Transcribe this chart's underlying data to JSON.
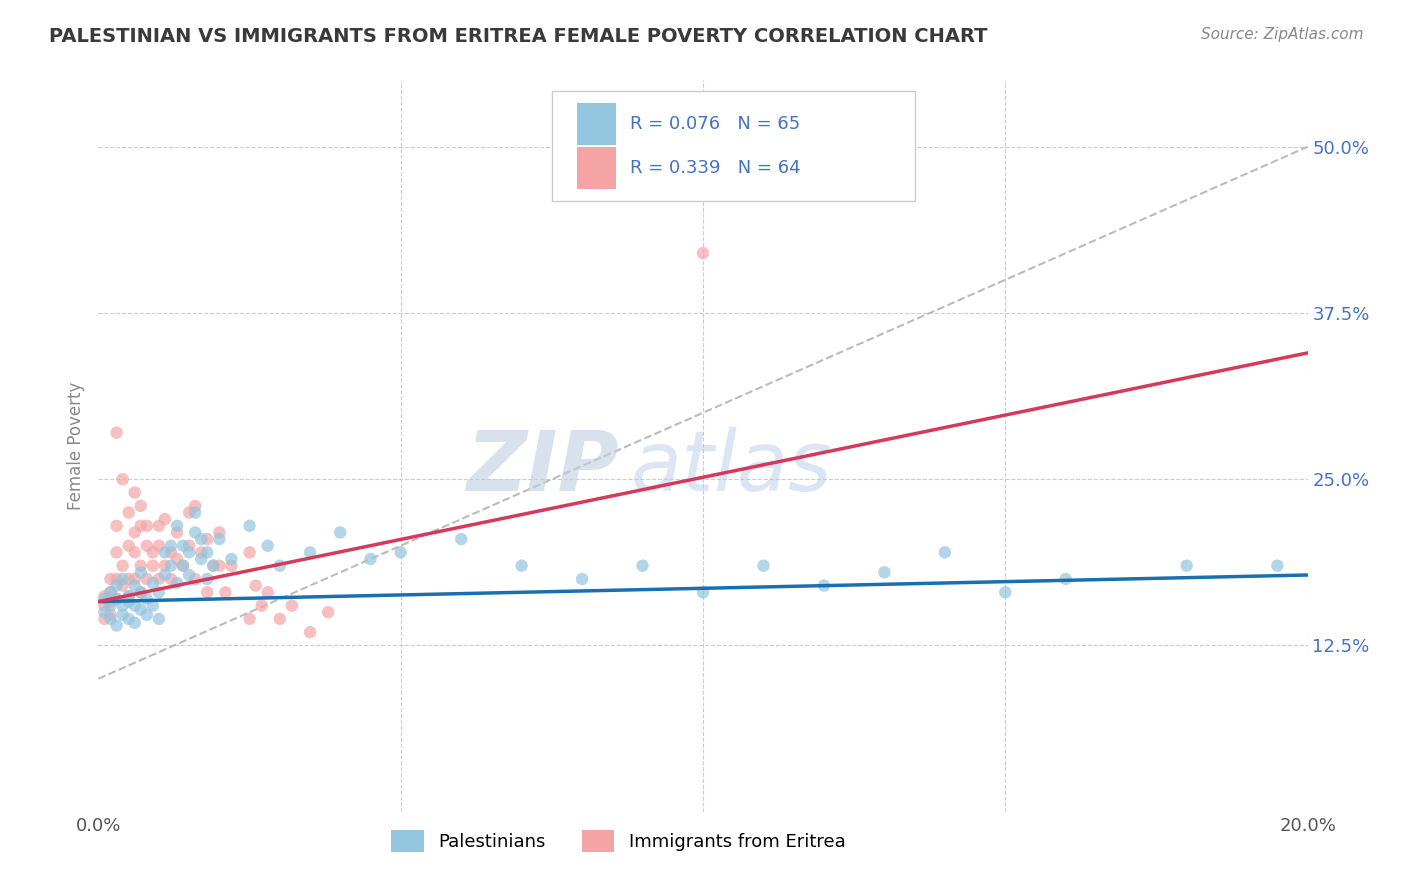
{
  "title": "PALESTINIAN VS IMMIGRANTS FROM ERITREA FEMALE POVERTY CORRELATION CHART",
  "source": "Source: ZipAtlas.com",
  "ylabel": "Female Poverty",
  "xlim": [
    0.0,
    0.2
  ],
  "ylim": [
    0.0,
    0.55
  ],
  "yticks": [
    0.0,
    0.125,
    0.25,
    0.375,
    0.5
  ],
  "ytick_labels": [
    "",
    "12.5%",
    "25.0%",
    "37.5%",
    "50.0%"
  ],
  "blue_color": "#92c5de",
  "pink_color": "#f4a4a4",
  "blue_line_color": "#1a6faf",
  "pink_line_color": "#d63a5a",
  "grid_color": "#cccccc",
  "title_color": "#3a3a3a",
  "legend_text_color": "#4472c4",
  "scatter_blue": [
    [
      0.001,
      0.16
    ],
    [
      0.001,
      0.15
    ],
    [
      0.002,
      0.165
    ],
    [
      0.002,
      0.145
    ],
    [
      0.002,
      0.155
    ],
    [
      0.003,
      0.17
    ],
    [
      0.003,
      0.14
    ],
    [
      0.003,
      0.16
    ],
    [
      0.004,
      0.155
    ],
    [
      0.004,
      0.175
    ],
    [
      0.004,
      0.148
    ],
    [
      0.005,
      0.162
    ],
    [
      0.005,
      0.145
    ],
    [
      0.005,
      0.158
    ],
    [
      0.006,
      0.155
    ],
    [
      0.006,
      0.17
    ],
    [
      0.006,
      0.142
    ],
    [
      0.007,
      0.165
    ],
    [
      0.007,
      0.152
    ],
    [
      0.007,
      0.18
    ],
    [
      0.008,
      0.16
    ],
    [
      0.008,
      0.148
    ],
    [
      0.009,
      0.172
    ],
    [
      0.009,
      0.155
    ],
    [
      0.01,
      0.165
    ],
    [
      0.01,
      0.145
    ],
    [
      0.011,
      0.195
    ],
    [
      0.011,
      0.178
    ],
    [
      0.012,
      0.2
    ],
    [
      0.012,
      0.185
    ],
    [
      0.013,
      0.215
    ],
    [
      0.013,
      0.172
    ],
    [
      0.014,
      0.2
    ],
    [
      0.014,
      0.185
    ],
    [
      0.015,
      0.195
    ],
    [
      0.015,
      0.178
    ],
    [
      0.016,
      0.21
    ],
    [
      0.016,
      0.225
    ],
    [
      0.017,
      0.19
    ],
    [
      0.017,
      0.205
    ],
    [
      0.018,
      0.175
    ],
    [
      0.018,
      0.195
    ],
    [
      0.019,
      0.185
    ],
    [
      0.02,
      0.205
    ],
    [
      0.022,
      0.19
    ],
    [
      0.025,
      0.215
    ],
    [
      0.028,
      0.2
    ],
    [
      0.03,
      0.185
    ],
    [
      0.035,
      0.195
    ],
    [
      0.04,
      0.21
    ],
    [
      0.045,
      0.19
    ],
    [
      0.05,
      0.195
    ],
    [
      0.06,
      0.205
    ],
    [
      0.07,
      0.185
    ],
    [
      0.08,
      0.175
    ],
    [
      0.09,
      0.185
    ],
    [
      0.1,
      0.165
    ],
    [
      0.11,
      0.185
    ],
    [
      0.12,
      0.17
    ],
    [
      0.13,
      0.18
    ],
    [
      0.14,
      0.195
    ],
    [
      0.15,
      0.165
    ],
    [
      0.16,
      0.175
    ],
    [
      0.18,
      0.185
    ],
    [
      0.195,
      0.185
    ]
  ],
  "scatter_pink": [
    [
      0.001,
      0.155
    ],
    [
      0.001,
      0.162
    ],
    [
      0.001,
      0.145
    ],
    [
      0.002,
      0.175
    ],
    [
      0.002,
      0.165
    ],
    [
      0.002,
      0.158
    ],
    [
      0.002,
      0.148
    ],
    [
      0.003,
      0.175
    ],
    [
      0.003,
      0.16
    ],
    [
      0.003,
      0.195
    ],
    [
      0.003,
      0.215
    ],
    [
      0.003,
      0.285
    ],
    [
      0.004,
      0.17
    ],
    [
      0.004,
      0.185
    ],
    [
      0.004,
      0.25
    ],
    [
      0.005,
      0.225
    ],
    [
      0.005,
      0.175
    ],
    [
      0.005,
      0.2
    ],
    [
      0.005,
      0.162
    ],
    [
      0.006,
      0.24
    ],
    [
      0.006,
      0.21
    ],
    [
      0.006,
      0.195
    ],
    [
      0.006,
      0.175
    ],
    [
      0.007,
      0.23
    ],
    [
      0.007,
      0.215
    ],
    [
      0.007,
      0.185
    ],
    [
      0.007,
      0.165
    ],
    [
      0.008,
      0.2
    ],
    [
      0.008,
      0.215
    ],
    [
      0.008,
      0.175
    ],
    [
      0.009,
      0.195
    ],
    [
      0.009,
      0.185
    ],
    [
      0.01,
      0.215
    ],
    [
      0.01,
      0.175
    ],
    [
      0.01,
      0.2
    ],
    [
      0.011,
      0.185
    ],
    [
      0.011,
      0.22
    ],
    [
      0.012,
      0.195
    ],
    [
      0.012,
      0.175
    ],
    [
      0.013,
      0.21
    ],
    [
      0.013,
      0.19
    ],
    [
      0.014,
      0.185
    ],
    [
      0.015,
      0.2
    ],
    [
      0.015,
      0.225
    ],
    [
      0.016,
      0.175
    ],
    [
      0.016,
      0.23
    ],
    [
      0.017,
      0.195
    ],
    [
      0.018,
      0.205
    ],
    [
      0.018,
      0.165
    ],
    [
      0.019,
      0.185
    ],
    [
      0.02,
      0.21
    ],
    [
      0.02,
      0.185
    ],
    [
      0.021,
      0.165
    ],
    [
      0.022,
      0.185
    ],
    [
      0.025,
      0.195
    ],
    [
      0.025,
      0.145
    ],
    [
      0.026,
      0.17
    ],
    [
      0.027,
      0.155
    ],
    [
      0.028,
      0.165
    ],
    [
      0.03,
      0.145
    ],
    [
      0.032,
      0.155
    ],
    [
      0.035,
      0.135
    ],
    [
      0.038,
      0.15
    ],
    [
      0.1,
      0.42
    ]
  ],
  "blue_trendline": [
    [
      0.0,
      0.158
    ],
    [
      0.2,
      0.178
    ]
  ],
  "pink_trendline": [
    [
      0.0,
      0.158
    ],
    [
      0.2,
      0.345
    ]
  ],
  "grey_trendline": [
    [
      0.0,
      0.1
    ],
    [
      0.2,
      0.5
    ]
  ]
}
